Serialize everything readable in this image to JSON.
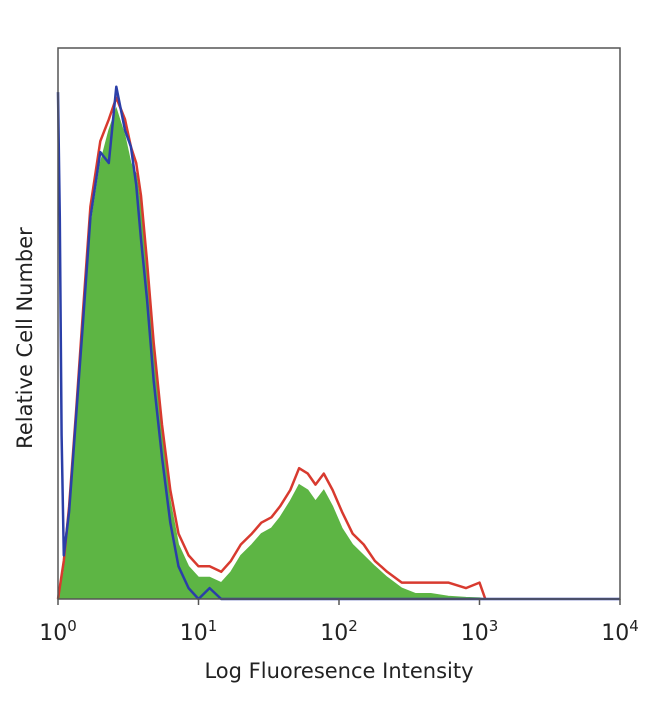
{
  "chart_data": {
    "type": "area",
    "xlabel": "Log Fluoresence Intensity",
    "ylabel": "Relative Cell Number",
    "x_scale": "log",
    "xlim": [
      1,
      10000
    ],
    "ylim": [
      0,
      1
    ],
    "grid": false,
    "x_ticks": [
      {
        "base": "10",
        "exp": "0"
      },
      {
        "base": "10",
        "exp": "1"
      },
      {
        "base": "10",
        "exp": "2"
      },
      {
        "base": "10",
        "exp": "3"
      },
      {
        "base": "10",
        "exp": "4"
      }
    ],
    "series": [
      {
        "color": "#5db544",
        "style": "filled",
        "x": [
          1.0,
          1.1,
          1.2,
          1.35,
          1.5,
          1.7,
          2.0,
          2.3,
          2.6,
          3.0,
          3.3,
          3.6,
          3.9,
          4.3,
          4.8,
          5.5,
          6.3,
          7.2,
          8.5,
          10.0,
          12.0,
          14.5,
          17.0,
          20.0,
          24.0,
          28.0,
          33.0,
          38.0,
          45.0,
          52.0,
          60.0,
          68.0,
          78.0,
          90.0,
          105.0,
          125.0,
          150.0,
          180.0,
          220.0,
          280.0,
          350.0,
          450.0,
          600.0,
          800.0,
          1000.0,
          1100.0
        ],
        "y": [
          0.0,
          0.05,
          0.15,
          0.33,
          0.5,
          0.68,
          0.8,
          0.86,
          0.9,
          0.85,
          0.8,
          0.78,
          0.72,
          0.6,
          0.45,
          0.3,
          0.18,
          0.1,
          0.06,
          0.04,
          0.04,
          0.03,
          0.05,
          0.08,
          0.1,
          0.12,
          0.13,
          0.15,
          0.18,
          0.21,
          0.2,
          0.18,
          0.2,
          0.17,
          0.13,
          0.1,
          0.08,
          0.06,
          0.04,
          0.02,
          0.01,
          0.01,
          0.005,
          0.003,
          0.002,
          0.0
        ]
      },
      {
        "color": "#d83a2f",
        "style": "line",
        "x": [
          1.0,
          1.1,
          1.2,
          1.35,
          1.5,
          1.7,
          2.0,
          2.3,
          2.6,
          3.0,
          3.3,
          3.6,
          3.9,
          4.3,
          4.8,
          5.5,
          6.3,
          7.2,
          8.5,
          10.0,
          12.0,
          14.5,
          17.0,
          20.0,
          24.0,
          28.0,
          33.0,
          38.0,
          45.0,
          52.0,
          60.0,
          68.0,
          78.0,
          90.0,
          105.0,
          125.0,
          150.0,
          180.0,
          220.0,
          280.0,
          350.0,
          450.0,
          600.0,
          800.0,
          1000.0,
          1100.0
        ],
        "y": [
          0.0,
          0.07,
          0.17,
          0.35,
          0.52,
          0.72,
          0.84,
          0.88,
          0.92,
          0.88,
          0.83,
          0.8,
          0.74,
          0.62,
          0.47,
          0.32,
          0.2,
          0.12,
          0.08,
          0.06,
          0.06,
          0.05,
          0.07,
          0.1,
          0.12,
          0.14,
          0.15,
          0.17,
          0.2,
          0.24,
          0.23,
          0.21,
          0.23,
          0.2,
          0.16,
          0.12,
          0.1,
          0.07,
          0.05,
          0.03,
          0.03,
          0.03,
          0.03,
          0.02,
          0.03,
          0.0
        ]
      },
      {
        "color": "#2b3fa8",
        "style": "line",
        "x": [
          1.0,
          1.03,
          1.06,
          1.1,
          1.2,
          1.35,
          1.5,
          1.7,
          2.0,
          2.3,
          2.6,
          3.0,
          3.3,
          3.6,
          3.9,
          4.3,
          4.8,
          5.5,
          6.3,
          7.2,
          8.5,
          10.0,
          12.0,
          14.5,
          17.0,
          20.0,
          30.0,
          100.0,
          1000.0,
          10000.0
        ],
        "y": [
          0.93,
          0.7,
          0.3,
          0.08,
          0.16,
          0.34,
          0.5,
          0.7,
          0.82,
          0.8,
          0.94,
          0.86,
          0.83,
          0.76,
          0.66,
          0.55,
          0.4,
          0.26,
          0.14,
          0.06,
          0.02,
          0.0,
          0.02,
          0.0,
          0.0,
          0.0,
          0.0,
          0.0,
          0.0,
          0.0
        ]
      }
    ]
  }
}
